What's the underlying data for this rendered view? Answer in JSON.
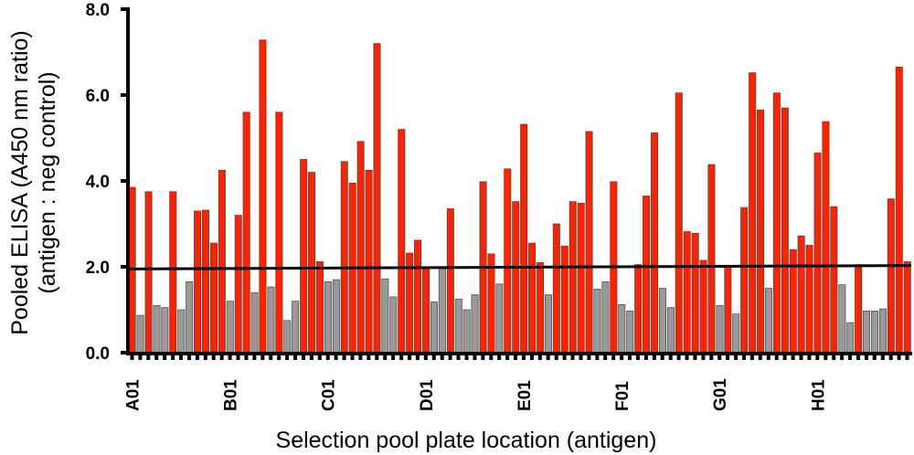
{
  "chart_data": {
    "type": "bar",
    "title": "",
    "xlabel": "Selection pool plate location (antigen)",
    "ylabel_line1": "Pooled ELISA (A450 nm ratio)",
    "ylabel_line2": "(antigen : neg control)",
    "ylim": [
      0,
      8
    ],
    "yticks": [
      "0.0",
      "2.0",
      "4.0",
      "6.0",
      "8.0"
    ],
    "ytick_values": [
      0,
      2,
      4,
      6,
      8
    ],
    "shown_category_labels": [
      "A01",
      "B01",
      "C01",
      "D01",
      "E01",
      "F01",
      "G01",
      "H01"
    ],
    "rows": [
      "A",
      "B",
      "C",
      "D",
      "E",
      "F",
      "G",
      "H"
    ],
    "columns_per_row": 12,
    "threshold": {
      "start": 1.95,
      "end": 2.03
    },
    "colors": {
      "hit": "#ff2200",
      "non_hit": "#999999",
      "threshold": "#000000"
    },
    "values": [
      3.85,
      0.87,
      3.75,
      1.1,
      1.05,
      3.75,
      1.0,
      1.65,
      3.3,
      3.32,
      2.55,
      4.25,
      1.2,
      3.2,
      5.6,
      1.4,
      7.28,
      1.53,
      5.6,
      0.75,
      1.2,
      4.5,
      4.2,
      2.12,
      1.65,
      1.7,
      4.45,
      3.95,
      4.92,
      4.25,
      7.2,
      1.72,
      1.3,
      5.2,
      2.32,
      2.62,
      2.0,
      1.18,
      1.98,
      3.35,
      1.25,
      1.0,
      1.35,
      3.98,
      2.3,
      1.6,
      4.28,
      3.52,
      5.32,
      2.55,
      2.1,
      1.35,
      3.0,
      2.48,
      3.52,
      3.48,
      5.15,
      1.48,
      1.65,
      3.98,
      1.12,
      0.97,
      2.05,
      3.65,
      5.12,
      1.5,
      1.05,
      6.05,
      2.82,
      2.78,
      2.15,
      4.38,
      1.1,
      2.0,
      0.9,
      3.38,
      6.52,
      5.65,
      1.5,
      6.05,
      5.7,
      2.4,
      2.72,
      2.5,
      4.65,
      5.38,
      3.4,
      1.58,
      0.7,
      2.05,
      0.97,
      0.97,
      1.02,
      3.58,
      6.65,
      2.12
    ],
    "hit": [
      1,
      0,
      1,
      0,
      0,
      1,
      0,
      0,
      1,
      1,
      1,
      1,
      0,
      1,
      1,
      0,
      1,
      0,
      1,
      0,
      0,
      1,
      1,
      1,
      0,
      0,
      1,
      1,
      1,
      1,
      1,
      0,
      0,
      1,
      1,
      1,
      1,
      0,
      0,
      1,
      0,
      0,
      0,
      1,
      1,
      0,
      1,
      1,
      1,
      1,
      1,
      0,
      1,
      1,
      1,
      1,
      1,
      0,
      0,
      1,
      0,
      0,
      1,
      1,
      1,
      0,
      0,
      1,
      1,
      1,
      1,
      1,
      0,
      1,
      0,
      1,
      1,
      1,
      0,
      1,
      1,
      1,
      1,
      1,
      1,
      1,
      1,
      0,
      0,
      1,
      0,
      0,
      0,
      1,
      1,
      1
    ]
  }
}
